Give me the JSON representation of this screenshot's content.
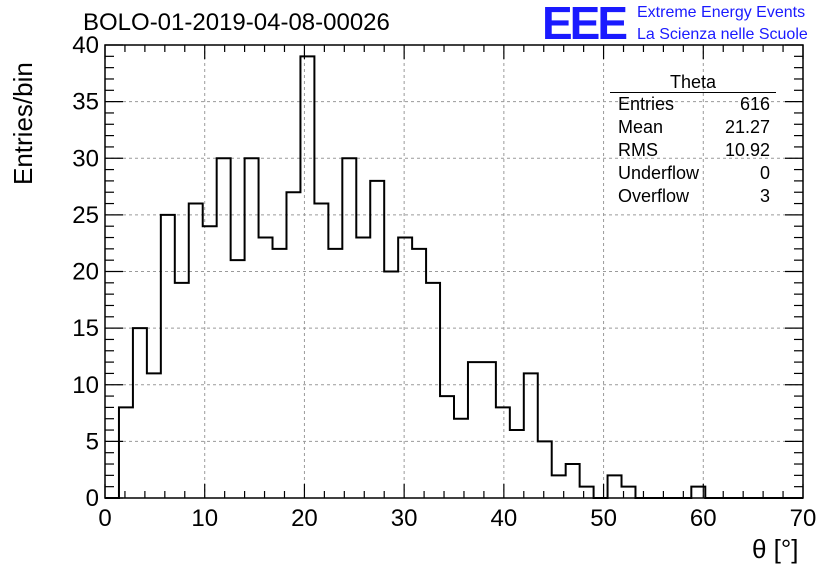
{
  "chart_data": {
    "type": "bar",
    "title": "BOLO-01-2019-04-08-00026",
    "xlabel": "θ [°]",
    "ylabel": "Entries/bin",
    "xlim": [
      0,
      70
    ],
    "ylim": [
      0,
      40
    ],
    "grid": true,
    "bin_width": 1.4,
    "x_ticks": [
      "0",
      "10",
      "20",
      "30",
      "40",
      "50",
      "60",
      "70"
    ],
    "y_ticks": [
      "0",
      "5",
      "10",
      "15",
      "20",
      "25",
      "30",
      "35",
      "40"
    ],
    "values": [
      0,
      8,
      15,
      11,
      25,
      19,
      26,
      24,
      30,
      21,
      30,
      23,
      22,
      27,
      39,
      26,
      22,
      30,
      23,
      28,
      20,
      23,
      22,
      19,
      9,
      7,
      12,
      12,
      8,
      6,
      11,
      5,
      2,
      3,
      1,
      0,
      2,
      1,
      0,
      0,
      0,
      0,
      1,
      0,
      0,
      0,
      0,
      0,
      0,
      0
    ],
    "stats_box": {
      "title": "Theta",
      "rows": [
        {
          "label": "Entries",
          "value": "616"
        },
        {
          "label": "Mean",
          "value": "21.27"
        },
        {
          "label": "RMS",
          "value": "10.92"
        },
        {
          "label": "Underflow",
          "value": "0"
        },
        {
          "label": "Overflow",
          "value": "3"
        }
      ],
      "placement": "top-right"
    }
  },
  "logo": {
    "mark": "EEE",
    "line1": "Extreme Energy Events",
    "line2": "La Scienza nelle Scuole",
    "color": "#1a1aff"
  }
}
